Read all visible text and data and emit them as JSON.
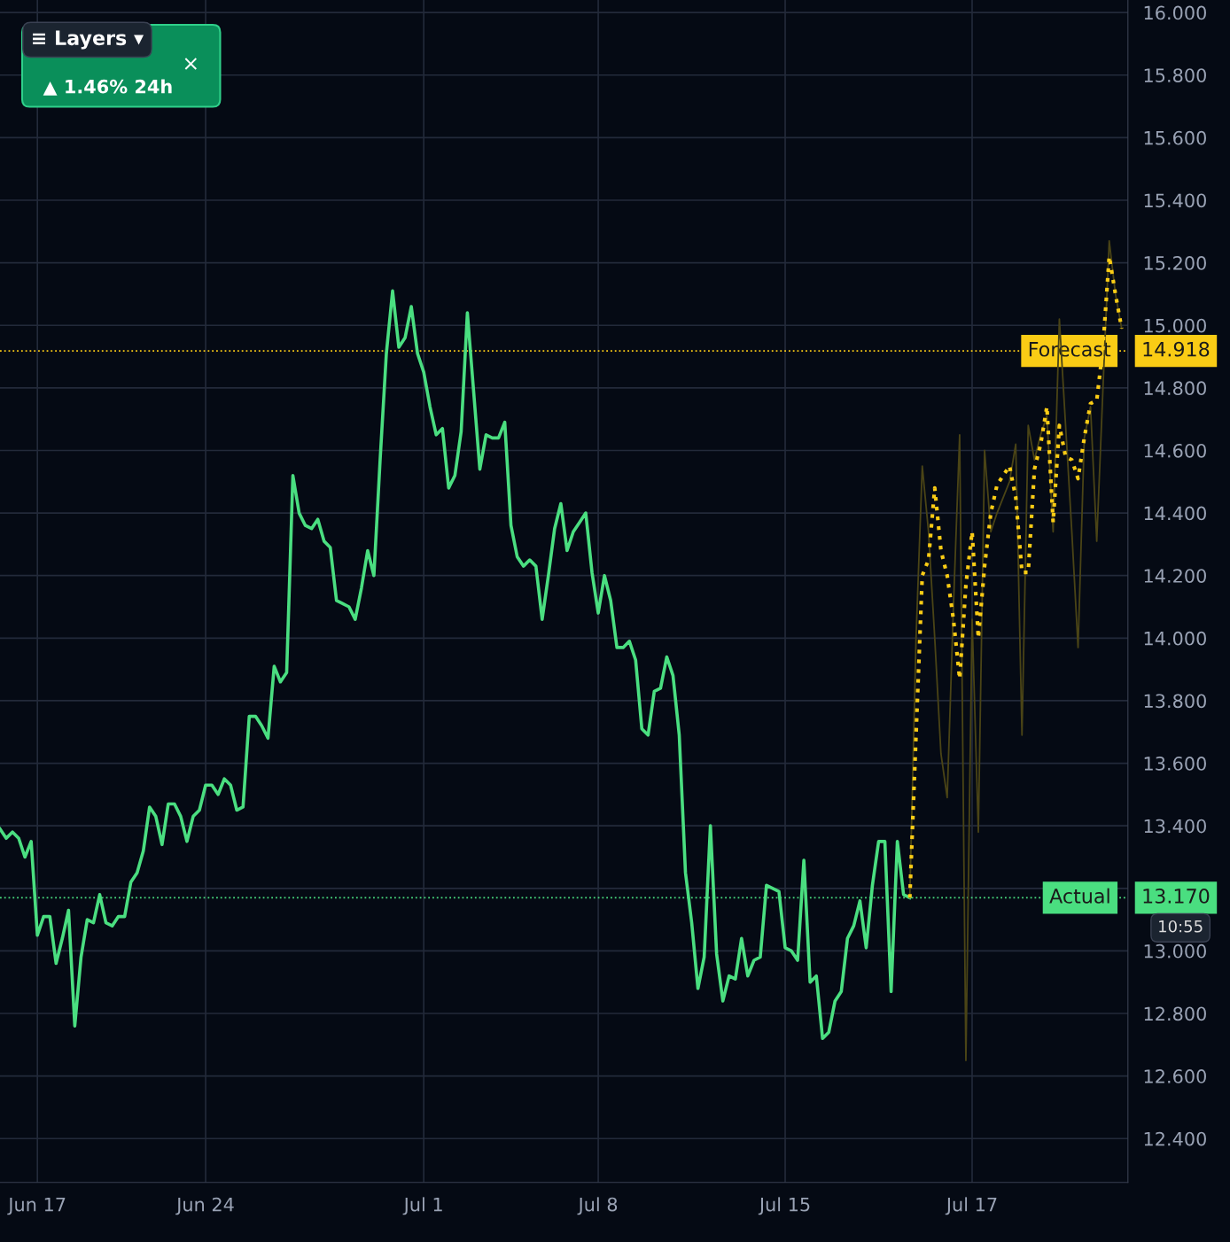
{
  "chart_data": {
    "type": "line",
    "categories": [
      null,
      null,
      null,
      null,
      null,
      null,
      "Jun 17",
      null,
      null,
      null,
      null,
      null,
      null,
      null,
      null,
      null,
      null,
      null,
      null,
      null,
      null,
      null,
      null,
      null,
      null,
      null,
      null,
      null,
      null,
      null,
      null,
      null,
      null,
      "Jun 24",
      null,
      null,
      null,
      null,
      null,
      null,
      null,
      null,
      null,
      null,
      null,
      null,
      null,
      null,
      null,
      null,
      null,
      null,
      null,
      null,
      null,
      null,
      null,
      null,
      null,
      null,
      null,
      null,
      null,
      null,
      null,
      null,
      null,
      null,
      "Jul 1",
      null,
      null,
      null,
      null,
      null,
      null,
      null,
      null,
      null,
      null,
      null,
      null,
      null,
      null,
      null,
      null,
      null,
      null,
      null,
      null,
      null,
      null,
      null,
      null,
      null,
      null,
      null,
      "Jul 8",
      null,
      null,
      null,
      null,
      null,
      null,
      null,
      null,
      null,
      null,
      null,
      null,
      null,
      null,
      null,
      null,
      null,
      null,
      null,
      null,
      null,
      null,
      null,
      null,
      null,
      null,
      null,
      null,
      null,
      "Jul 15",
      null,
      null,
      null,
      null,
      null,
      null,
      null,
      null,
      null,
      null,
      null,
      null,
      null,
      null,
      null,
      null,
      null,
      null,
      null,
      null,
      null,
      null,
      null,
      null,
      null,
      null,
      null,
      null,
      null,
      "Jul 17",
      null,
      null,
      null,
      null,
      null,
      null,
      null,
      null,
      null,
      null,
      null,
      null,
      null,
      null,
      null,
      null,
      null,
      null,
      null,
      null,
      null,
      null,
      null,
      null
    ],
    "ylim": [
      12.26,
      16.04
    ],
    "yticks": [
      {
        "value": 12.4,
        "label": "12.400"
      },
      {
        "value": 12.6,
        "label": "12.600"
      },
      {
        "value": 12.8,
        "label": "12.800"
      },
      {
        "value": 13.0,
        "label": "13.000"
      },
      {
        "value": 13.2,
        "label": null
      },
      {
        "value": 13.4,
        "label": "13.400"
      },
      {
        "value": 13.6,
        "label": "13.600"
      },
      {
        "value": 13.8,
        "label": "13.800"
      },
      {
        "value": 14.0,
        "label": "14.000"
      },
      {
        "value": 14.2,
        "label": "14.200"
      },
      {
        "value": 14.4,
        "label": "14.400"
      },
      {
        "value": 14.6,
        "label": "14.600"
      },
      {
        "value": 14.8,
        "label": "14.800"
      },
      {
        "value": 15.0,
        "label": "15.000"
      },
      {
        "value": 15.2,
        "label": "15.200"
      },
      {
        "value": 15.4,
        "label": "15.400"
      },
      {
        "value": 15.6,
        "label": "15.600"
      },
      {
        "value": 15.8,
        "label": "15.800"
      },
      {
        "value": 16.0,
        "label": "16.000"
      }
    ],
    "grid": true,
    "legend": false,
    "series": [
      {
        "color": "#4ade80",
        "line_style": "solid",
        "values": [
          13.39,
          13.36,
          13.38,
          13.36,
          13.3,
          13.35,
          13.05,
          13.11,
          13.11,
          12.96,
          13.04,
          13.13,
          12.76,
          12.98,
          13.1,
          13.09,
          13.18,
          13.09,
          13.08,
          13.11,
          13.11,
          13.22,
          13.25,
          13.32,
          13.46,
          13.43,
          13.34,
          13.47,
          13.47,
          13.43,
          13.35,
          13.43,
          13.45,
          13.53,
          13.53,
          13.5,
          13.55,
          13.53,
          13.45,
          13.46,
          13.75,
          13.75,
          13.72,
          13.68,
          13.91,
          13.86,
          13.89,
          14.52,
          14.4,
          14.36,
          14.35,
          14.38,
          14.31,
          14.29,
          14.12,
          14.11,
          14.1,
          14.06,
          14.16,
          14.28,
          14.2,
          14.57,
          14.91,
          15.11,
          14.93,
          14.96,
          15.06,
          14.91,
          14.85,
          14.74,
          14.65,
          14.67,
          14.48,
          14.52,
          14.66,
          15.04,
          14.79,
          14.54,
          14.65,
          14.64,
          14.64,
          14.69,
          14.36,
          14.26,
          14.23,
          14.25,
          14.23,
          14.06,
          14.2,
          14.35,
          14.43,
          14.28,
          14.34,
          14.37,
          14.4,
          14.21,
          14.08,
          14.2,
          14.12,
          13.97,
          13.97,
          13.99,
          13.93,
          13.71,
          13.69,
          13.83,
          13.84,
          13.94,
          13.88,
          13.69,
          13.25,
          13.09,
          12.88,
          12.98,
          13.4,
          12.99,
          12.84,
          12.92,
          12.91,
          13.04,
          12.92,
          12.97,
          12.98,
          13.21,
          13.2,
          13.19,
          13.01,
          13.0,
          12.97,
          13.29,
          12.9,
          12.92,
          12.72,
          12.74,
          12.84,
          12.87,
          13.04,
          13.08,
          13.16,
          13.01,
          13.21,
          13.35,
          13.35,
          12.87,
          13.35,
          13.18,
          13.17,
          null,
          null,
          null,
          null,
          null,
          null,
          null,
          null,
          null,
          null,
          null,
          null,
          null,
          null,
          null,
          null,
          null,
          null,
          null,
          null,
          null,
          null,
          null,
          null,
          null,
          null,
          null,
          null,
          null,
          null,
          null,
          null,
          null,
          null
        ]
      },
      {
        "color": "#4a4416",
        "line_style": "solid",
        "values": [
          null,
          null,
          null,
          null,
          null,
          null,
          null,
          null,
          null,
          null,
          null,
          null,
          null,
          null,
          null,
          null,
          null,
          null,
          null,
          null,
          null,
          null,
          null,
          null,
          null,
          null,
          null,
          null,
          null,
          null,
          null,
          null,
          null,
          null,
          null,
          null,
          null,
          null,
          null,
          null,
          null,
          null,
          null,
          null,
          null,
          null,
          null,
          null,
          null,
          null,
          null,
          null,
          null,
          null,
          null,
          null,
          null,
          null,
          null,
          null,
          null,
          null,
          null,
          null,
          null,
          null,
          null,
          null,
          null,
          null,
          null,
          null,
          null,
          null,
          null,
          null,
          null,
          null,
          null,
          null,
          null,
          null,
          null,
          null,
          null,
          null,
          null,
          null,
          null,
          null,
          null,
          null,
          null,
          null,
          null,
          null,
          null,
          null,
          null,
          null,
          null,
          null,
          null,
          null,
          null,
          null,
          null,
          null,
          null,
          null,
          null,
          null,
          null,
          null,
          null,
          null,
          null,
          null,
          null,
          null,
          null,
          null,
          null,
          null,
          null,
          null,
          null,
          null,
          null,
          null,
          null,
          null,
          null,
          null,
          null,
          null,
          null,
          null,
          null,
          null,
          null,
          null,
          null,
          null,
          null,
          null,
          13.17,
          14.0,
          14.55,
          14.34,
          14.0,
          13.63,
          13.49,
          14.1,
          14.65,
          12.65,
          14.06,
          13.38,
          14.6,
          14.34,
          14.4,
          14.45,
          14.5,
          14.62,
          13.69,
          14.68,
          14.57,
          14.65,
          14.71,
          14.34,
          15.02,
          14.68,
          14.34,
          13.97,
          14.64,
          14.74,
          14.31,
          14.8,
          15.27,
          15.1,
          14.99
        ]
      },
      {
        "color": "#facc15",
        "line_style": "dotted",
        "values": [
          null,
          null,
          null,
          null,
          null,
          null,
          null,
          null,
          null,
          null,
          null,
          null,
          null,
          null,
          null,
          null,
          null,
          null,
          null,
          null,
          null,
          null,
          null,
          null,
          null,
          null,
          null,
          null,
          null,
          null,
          null,
          null,
          null,
          null,
          null,
          null,
          null,
          null,
          null,
          null,
          null,
          null,
          null,
          null,
          null,
          null,
          null,
          null,
          null,
          null,
          null,
          null,
          null,
          null,
          null,
          null,
          null,
          null,
          null,
          null,
          null,
          null,
          null,
          null,
          null,
          null,
          null,
          null,
          null,
          null,
          null,
          null,
          null,
          null,
          null,
          null,
          null,
          null,
          null,
          null,
          null,
          null,
          null,
          null,
          null,
          null,
          null,
          null,
          null,
          null,
          null,
          null,
          null,
          null,
          null,
          null,
          null,
          null,
          null,
          null,
          null,
          null,
          null,
          null,
          null,
          null,
          null,
          null,
          null,
          null,
          null,
          null,
          null,
          null,
          null,
          null,
          null,
          null,
          null,
          null,
          null,
          null,
          null,
          null,
          null,
          null,
          null,
          null,
          null,
          null,
          null,
          null,
          null,
          null,
          null,
          null,
          null,
          null,
          null,
          null,
          null,
          null,
          null,
          null,
          null,
          null,
          13.17,
          13.69,
          14.2,
          14.25,
          14.48,
          14.28,
          14.2,
          14.06,
          13.87,
          14.17,
          14.34,
          14.0,
          14.23,
          14.4,
          14.49,
          14.52,
          14.55,
          14.45,
          14.21,
          14.21,
          14.54,
          14.62,
          14.74,
          14.37,
          14.68,
          14.58,
          14.57,
          14.51,
          14.64,
          14.75,
          14.76,
          14.93,
          15.22,
          15.1,
          14.99
        ]
      }
    ],
    "ref_lines": [
      {
        "axis": "y",
        "value": 14.918,
        "label": "Forecast",
        "color": "#facc15",
        "line_style": "dotted"
      },
      {
        "axis": "y",
        "value": 13.17,
        "label": "Actual",
        "color": "#4ade80",
        "line_style": "dotted"
      }
    ],
    "annotations": [
      "≡ Layers ▾",
      "▲ 1.46% 24h",
      "×",
      "10:55",
      "14.918",
      "13.170"
    ]
  }
}
